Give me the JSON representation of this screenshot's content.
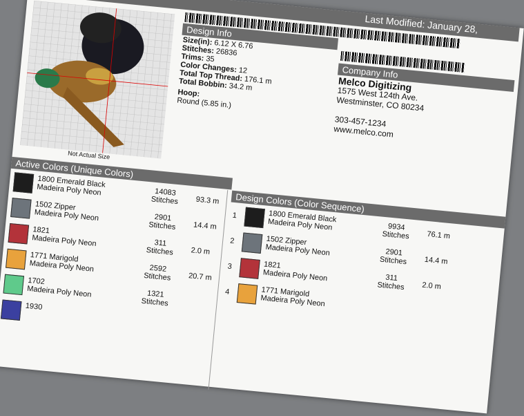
{
  "header": {
    "last_modified": "Last Modified: January 28,"
  },
  "image": {
    "caption": "Not Actual Size"
  },
  "design_info": {
    "title": "Design Info",
    "fields": [
      {
        "label": "Size(in):",
        "value": "6.12 X 6.76"
      },
      {
        "label": "Stitches:",
        "value": "26836"
      },
      {
        "label": "Trims:",
        "value": "35"
      },
      {
        "label": "Color Changes:",
        "value": "12"
      },
      {
        "label": "Total Top Thread:",
        "value": "176.1 m"
      },
      {
        "label": "Total Bobbin:",
        "value": "34.2 m"
      }
    ],
    "hoop_label": "Hoop:",
    "hoop": "Round (5.85 in.)"
  },
  "company_info": {
    "title": "Company Info",
    "name": "Melco Digitizing",
    "lines": [
      "1575 West 124th Ave.",
      "Westminster, CO 80234"
    ],
    "phone": "303-457-1234",
    "web": "www.melco.com"
  },
  "active_colors": {
    "title": "Active Colors (Unique Colors)",
    "stitches_label": "Stitches",
    "rows": [
      {
        "color": "#1d1d1d",
        "name": "1800 Emerald Black",
        "thread": "Madeira Poly Neon",
        "stitches": "14083",
        "length": "93.3 m"
      },
      {
        "color": "#6d747b",
        "name": "1502 Zipper",
        "thread": "Madeira Poly Neon",
        "stitches": "2901",
        "length": "14.4 m"
      },
      {
        "color": "#b3333a",
        "name": "1821",
        "thread": "Madeira Poly Neon",
        "stitches": "311",
        "length": "2.0 m"
      },
      {
        "color": "#e8a23c",
        "name": "1771 Marigold",
        "thread": "Madeira Poly Neon",
        "stitches": "2592",
        "length": "20.7 m"
      },
      {
        "color": "#5fca8b",
        "name": "1702",
        "thread": "Madeira Poly Neon",
        "stitches": "1321"
      },
      {
        "color": "#3b40a0",
        "name": "1930"
      }
    ]
  },
  "design_colors": {
    "title": "Design Colors (Color Sequence)",
    "stitches_label": "Stitches",
    "rows": [
      {
        "index": "1",
        "color": "#1d1d1d",
        "name": "1800 Emerald Black",
        "thread": "Madeira Poly Neon",
        "stitches": "9934",
        "length": "76.1 m"
      },
      {
        "index": "2",
        "color": "#6d747b",
        "name": "1502 Zipper",
        "thread": "Madeira Poly Neon",
        "stitches": "2901",
        "length": "14.4 m"
      },
      {
        "index": "3",
        "color": "#b3333a",
        "name": "1821",
        "thread": "Madeira Poly Neon",
        "stitches": "311",
        "length": "2.0 m"
      },
      {
        "index": "4",
        "color": "#e8a23c",
        "name": "1771 Marigold",
        "thread": "Madeira Poly Neon"
      }
    ]
  }
}
